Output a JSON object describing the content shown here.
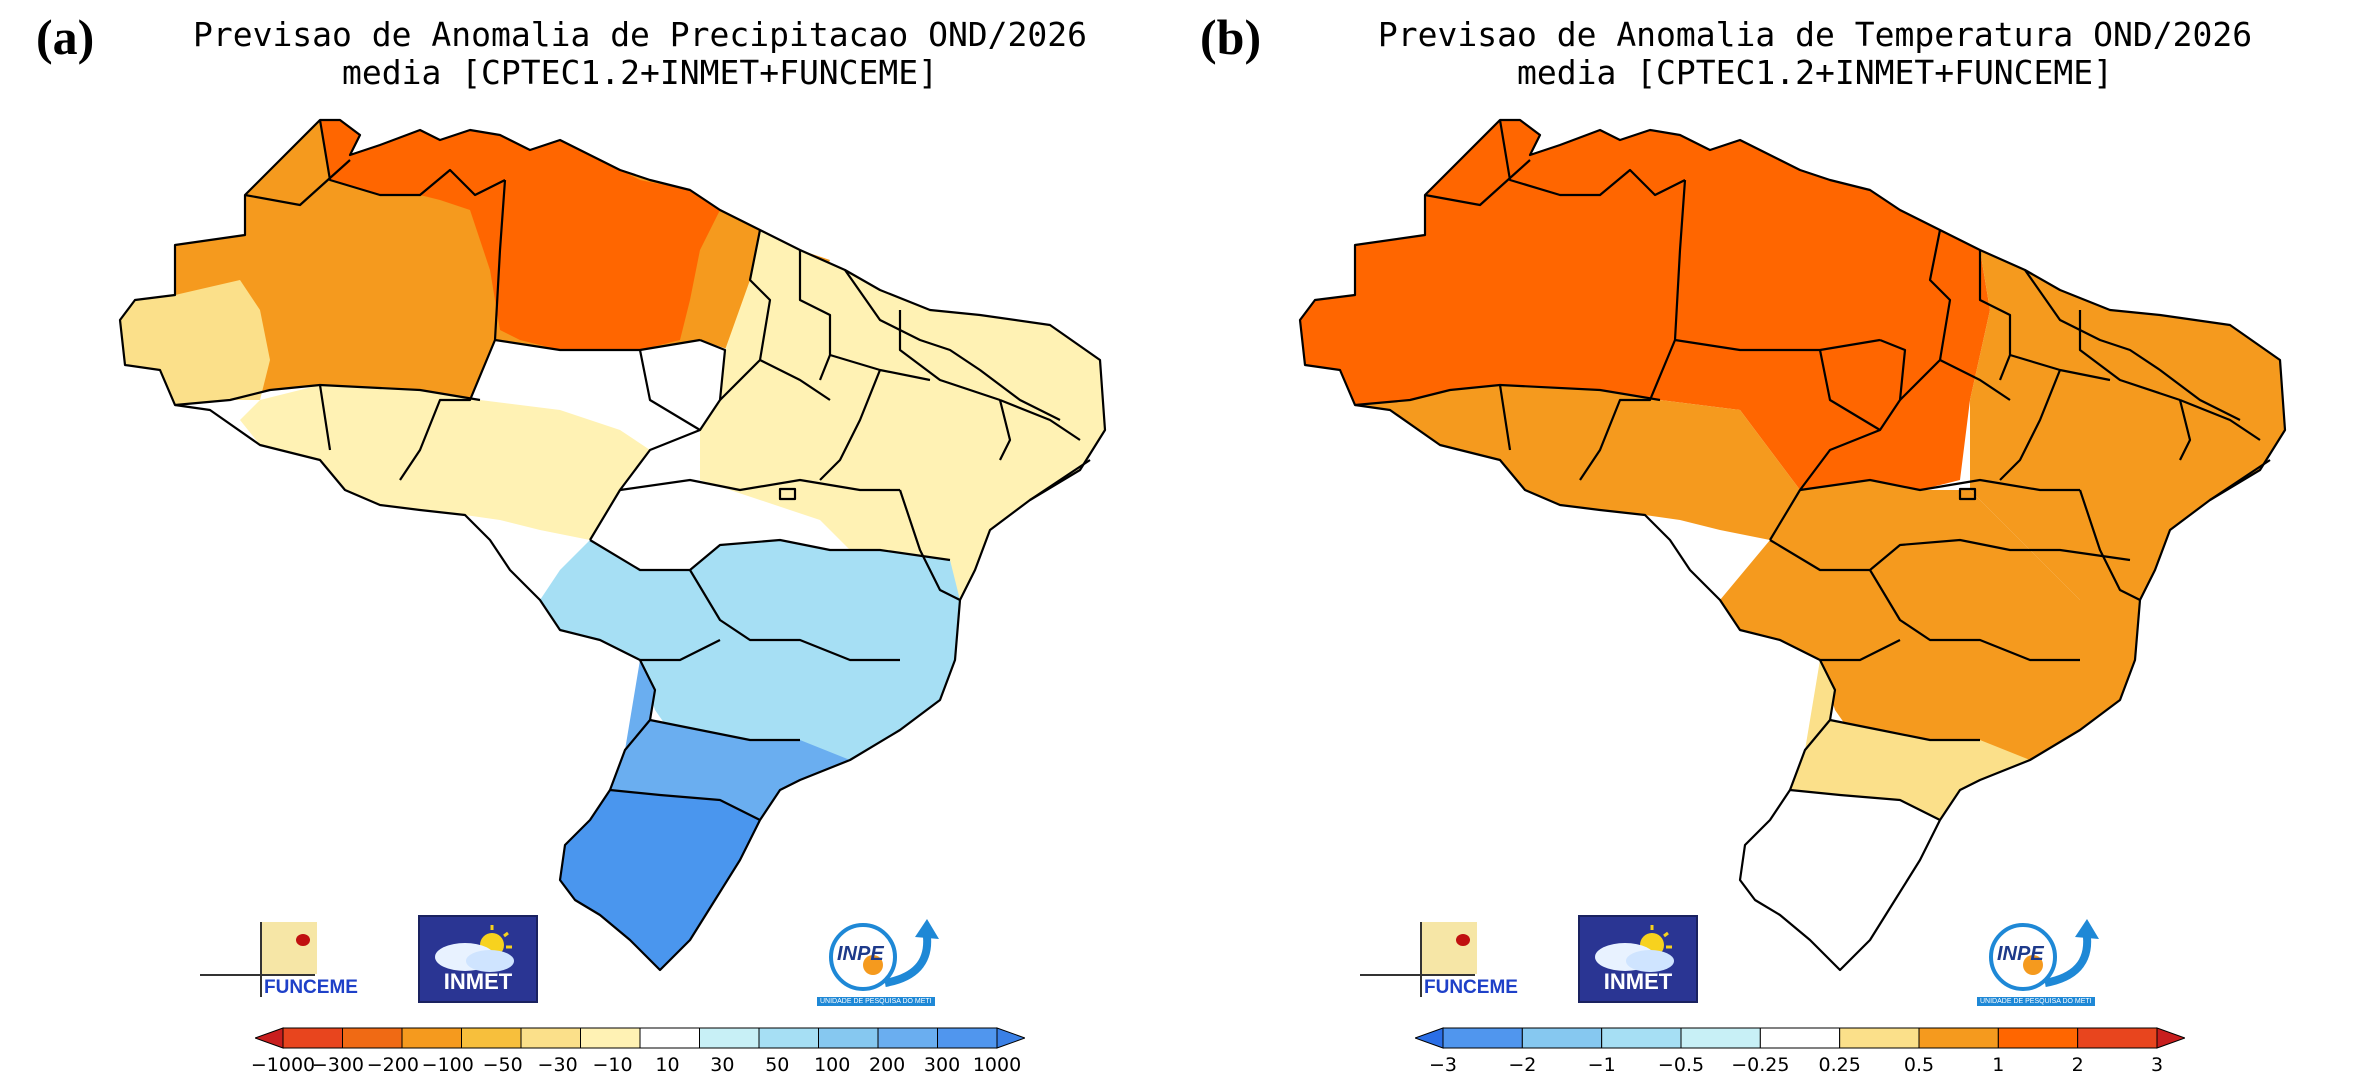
{
  "panels": [
    {
      "label": "(a)",
      "title_line1": "Previsao de Anomalia de Precipitacao OND/2026",
      "title_line2": "media [CPTEC1.2+INMET+FUNCEME]",
      "colorbar_ticks": [
        "-1000",
        "-300",
        "-200",
        "-100",
        "-50",
        "-30",
        "-10",
        "10",
        "30",
        "50",
        "100",
        "200",
        "300",
        "1000"
      ],
      "colorbar_colors": [
        "#c81e1e",
        "#e8451e",
        "#f06a14",
        "#f59a1e",
        "#f7bf3c",
        "#fbe08a",
        "#fff2b4",
        "#ffffff",
        "#c8f0f6",
        "#a6dff4",
        "#86c8f0",
        "#6aaef0",
        "#5096ee",
        "#3a80e6"
      ],
      "regions": [
        {
          "name": "north-west-amazon",
          "color": "#f59a1e"
        },
        {
          "name": "roraima-para",
          "color": "#ff6600"
        },
        {
          "name": "west-amazonas-pale",
          "color": "#fbe08a"
        },
        {
          "name": "central-west",
          "color": "#fff2b4"
        },
        {
          "name": "northeast",
          "color": "#fff2b4"
        },
        {
          "name": "southeast",
          "color": "#a6dff4"
        },
        {
          "name": "south",
          "color": "#6aaef0"
        },
        {
          "name": "rio-grande-do-sul",
          "color": "#4a96ee"
        }
      ]
    },
    {
      "label": "(b)",
      "title_line1": "Previsao de Anomalia de Temperatura OND/2026",
      "title_line2": "media [CPTEC1.2+INMET+FUNCEME]",
      "colorbar_ticks": [
        "-3",
        "-2",
        "-1",
        "-0.5",
        "-0.25",
        "0.25",
        "0.5",
        "1",
        "2",
        "3"
      ],
      "colorbar_colors": [
        "#2a6ee6",
        "#5096ee",
        "#86c8f0",
        "#a6dff4",
        "#c8f0f6",
        "#ffffff",
        "#fbe08a",
        "#f59a1e",
        "#ff6600",
        "#e8451e",
        "#c81e1e"
      ],
      "regions": [
        {
          "name": "north",
          "color": "#ff6600"
        },
        {
          "name": "northeast",
          "color": "#f59a1e"
        },
        {
          "name": "central-west",
          "color": "#f59a1e"
        },
        {
          "name": "southeast",
          "color": "#f59a1e"
        },
        {
          "name": "south-pale",
          "color": "#fbe08a"
        },
        {
          "name": "rio-grande-do-sul",
          "color": "#ffffff"
        }
      ]
    }
  ],
  "logos": {
    "funceme": "FUNCEME",
    "inmet": "INMET",
    "inpe": "INPE",
    "inpe_sub": "UNIDADE DE PESQUISA DO METI"
  }
}
